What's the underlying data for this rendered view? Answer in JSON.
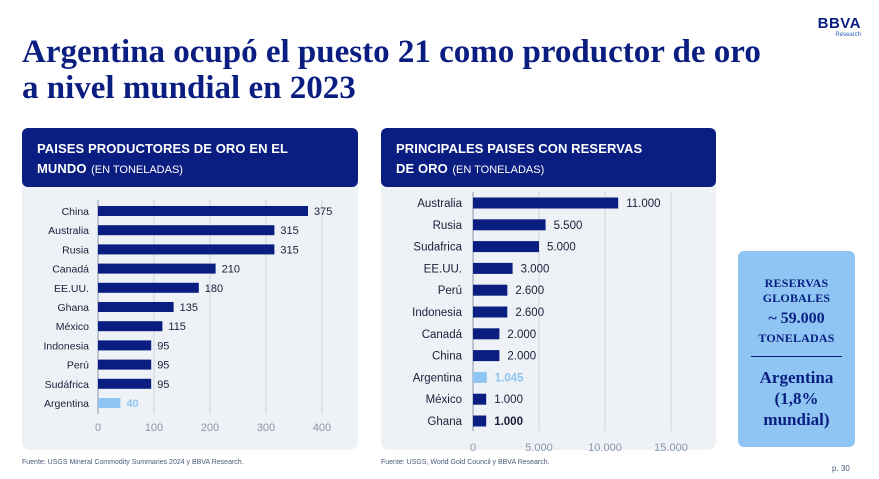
{
  "title": "Argentina ocupó el puesto 21 como productor de oro a nivel mundial en 2023",
  "logo": {
    "name": "BBVA",
    "sub": "Research"
  },
  "colors": {
    "navy": "#0a1e82",
    "highlight": "#8ec5f2",
    "panel": "#eef1f5",
    "grid": "#cdd3dd",
    "axis": "#8a96aa"
  },
  "left_panel": {
    "header_bold_1": "PAISES PRODUCTORES DE ORO EN EL",
    "header_bold_2": "MUNDO",
    "header_small": "(EN TONELADAS)",
    "source": "Fuente: USGS Mineral Commodity Summaries 2024 y BBVA Research."
  },
  "right_panel": {
    "header_bold_1": "PRINCIPALES PAISES CON RESERVAS",
    "header_bold_2": "DE ORO",
    "header_small": "(EN TONELADAS)",
    "source": "Fuente: USGS, World Gold Council y BBVA Research."
  },
  "callout": {
    "label_1": "RESERVAS",
    "label_2": "GLOBALES",
    "value": "~ 59.000",
    "unit": "TONELADAS",
    "arg_1": "Argentina",
    "arg_2": "(1,8%",
    "arg_3": "mundial)"
  },
  "page_number": "p. 30",
  "chart_data": [
    {
      "type": "bar",
      "orientation": "horizontal",
      "title": "PAISES PRODUCTORES DE ORO EN EL MUNDO (EN TONELADAS)",
      "categories": [
        "China",
        "Australia",
        "Rusia",
        "Canadá",
        "EE.UU.",
        "Ghana",
        "México",
        "Indonesia",
        "Perú",
        "Sudáfrica",
        "Argentina"
      ],
      "values": [
        375,
        315,
        315,
        210,
        180,
        135,
        115,
        95,
        95,
        95,
        40
      ],
      "labels": [
        "375",
        "315",
        "315",
        "210",
        "180",
        "135",
        "115",
        "95",
        "95",
        "95",
        "40"
      ],
      "highlight": "Argentina",
      "xlim": [
        0,
        400
      ],
      "xticks": [
        0,
        100,
        200,
        300,
        400
      ],
      "xtick_labels": [
        "0",
        "100",
        "200",
        "300",
        "400"
      ],
      "grid": true
    },
    {
      "type": "bar",
      "orientation": "horizontal",
      "title": "PRINCIPALES PAISES CON RESERVAS DE ORO (EN TONELADAS)",
      "categories": [
        "Australia",
        "Rusia",
        "Sudafrica",
        "EE.UU.",
        "Perú",
        "Indonesia",
        "Canadá",
        "China",
        "Argentina",
        "México",
        "Ghana"
      ],
      "values": [
        11000,
        5500,
        5000,
        3000,
        2600,
        2600,
        2000,
        2000,
        1045,
        1000,
        1000
      ],
      "labels": [
        "11.000",
        "5.500",
        "5.000",
        "3.000",
        "2.600",
        "2.600",
        "2.000",
        "2.000",
        "1.045",
        "1.000",
        "1.000"
      ],
      "highlight": "Argentina",
      "bold_labels": [
        "Ghana"
      ],
      "xlim": [
        0,
        15000
      ],
      "xticks": [
        0,
        5000,
        10000,
        15000
      ],
      "xtick_labels": [
        "0",
        "5.000",
        "10.000",
        "15.000"
      ],
      "grid": true
    }
  ]
}
